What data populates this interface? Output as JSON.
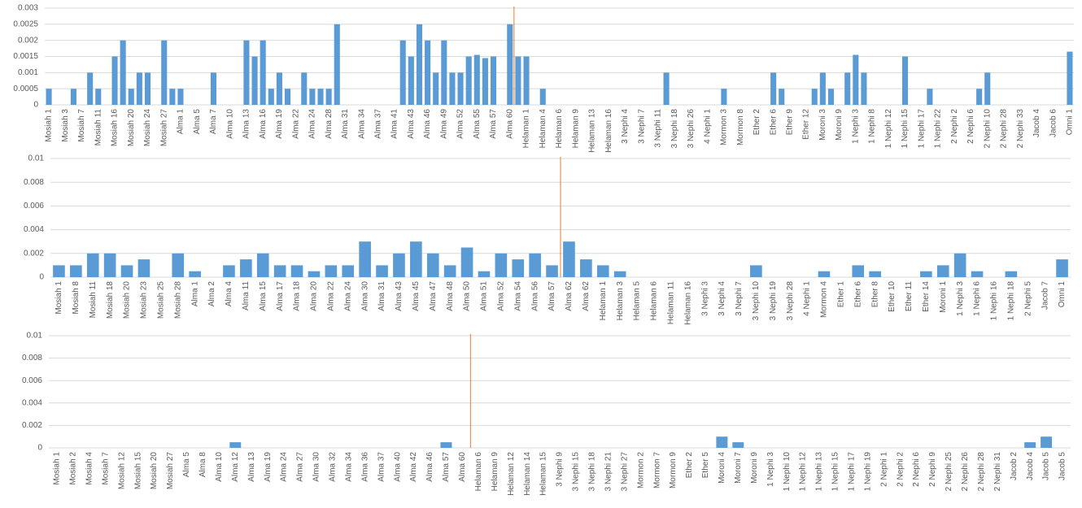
{
  "chart_data": [
    {
      "type": "bar",
      "color": "#5b9bd5",
      "grid": true,
      "ylim": [
        0,
        0.003
      ],
      "yticks": [
        0,
        0.0005,
        0.001,
        0.0015,
        0.002,
        0.0025,
        0.003
      ],
      "categories": [
        "Mosiah 1",
        null,
        "Mosiah 3",
        null,
        "Mosiah 7",
        null,
        "Mosiah 11",
        null,
        "Mosiah 16",
        null,
        "Mosiah 20",
        null,
        "Mosiah 24",
        null,
        "Mosiah 27",
        null,
        "Alma 1",
        null,
        "Alma 5",
        null,
        "Alma 7",
        null,
        "Alma 10",
        null,
        "Alma 13",
        null,
        "Alma 16",
        null,
        "Alma 19",
        null,
        "Alma 22",
        null,
        "Alma 24",
        null,
        "Alma 28",
        null,
        "Alma 31",
        null,
        "Alma 34",
        null,
        "Alma 37",
        null,
        "Alma 41",
        null,
        "Alma 43",
        null,
        "Alma 46",
        null,
        "Alma 49",
        null,
        "Alma 52",
        null,
        "Alma 55",
        null,
        "Alma 57",
        null,
        "Alma 60",
        null,
        "Helaman 1",
        null,
        "Helaman 4",
        null,
        "Helaman 6",
        null,
        "Helaman 9",
        null,
        "Helaman 13",
        null,
        "Helaman 16",
        null,
        "3 Nephi 4",
        null,
        "3 Nephi 7",
        null,
        "3 Nephi 11",
        null,
        "3 Nephi 18",
        null,
        "3 Nephi 26",
        null,
        "4 Nephi 1",
        null,
        "Mormon 3",
        null,
        "Mormon 8",
        null,
        "Ether 2",
        null,
        "Ether 6",
        null,
        "Ether 9",
        null,
        "Ether 12",
        null,
        "Moroni 3",
        null,
        "Moroni 9",
        null,
        "1 Nephi 3",
        null,
        "1 Nephi 8",
        null,
        "1 Nephi 12",
        null,
        "1 Nephi 15",
        null,
        "1 Nephi 17",
        null,
        "1 Nephi 22",
        null,
        "2 Nephi 2",
        null,
        "2 Nephi 6",
        null,
        "2 Nephi 10",
        null,
        "2 Nephi 28",
        null,
        "2 Nephi 33",
        null,
        "Jacob 4",
        null,
        "Jacob 6",
        null,
        "Omni 1"
      ],
      "values": [
        0.0005,
        0,
        0,
        0.0005,
        0,
        0.001,
        0.0005,
        0,
        0.0015,
        0.002,
        0.0005,
        0.001,
        0.001,
        0,
        0.002,
        0.0005,
        0.0005,
        0,
        0,
        0,
        0.001,
        0,
        0,
        0,
        0.002,
        0.0015,
        0.002,
        0.0005,
        0.001,
        0.0005,
        0,
        0.001,
        0.0005,
        0.0005,
        0.0005,
        0.0025,
        0,
        0,
        0,
        0,
        0,
        0,
        0,
        0.002,
        0.0015,
        0.0025,
        0.002,
        0.001,
        0.002,
        0.001,
        0.001,
        0.0015,
        0.00155,
        0.00145,
        0.0015,
        0,
        0.0025,
        0.0015,
        0.0015,
        0,
        0.0005,
        0,
        0,
        0,
        0,
        0,
        0,
        0,
        0,
        0,
        0,
        0,
        0,
        0,
        0,
        0.001,
        0,
        0,
        0,
        0,
        0,
        0,
        0.0005,
        0,
        0,
        0,
        0,
        0,
        0.001,
        0.0005,
        0,
        0,
        0,
        0.0005,
        0.001,
        0.0005,
        0,
        0.001,
        0.00155,
        0.001,
        0,
        0,
        0,
        0,
        0.0015,
        0,
        0,
        0.0005,
        0,
        0,
        0,
        0,
        0,
        0.0005,
        0.001,
        0,
        0,
        0,
        0,
        0,
        0,
        0,
        0,
        0,
        0.00165
      ]
    },
    {
      "type": "bar",
      "color": "#5b9bd5",
      "grid": true,
      "ylim": [
        0,
        0.01
      ],
      "yticks": [
        0,
        0.002,
        0.004,
        0.006,
        0.008,
        0.01
      ],
      "categories": [
        "Mosiah 1",
        "Mosiah 8",
        "Mosiah 11",
        "Mosiah 18",
        "Mosiah 20",
        "Mosiah 23",
        "Mosiah 25",
        "Mosiah 28",
        "Alma 1",
        "Alma 2",
        "Alma 4",
        "Alma 11",
        "Alma 15",
        "Alma 17",
        "Alma 18",
        "Alma 20",
        "Alma 22",
        "Alma 24",
        "Alma 30",
        "Alma 31",
        "Alma 43",
        "Alma 45",
        "Alma 47",
        "Alma 48",
        "Alma 50",
        "Alma 51",
        "Alma 52",
        "Alma 54",
        "Alma 56",
        "Alma 57",
        "Alma 62",
        "Alma 62",
        "Helaman 1",
        "Helaman 3",
        "Helaman 5",
        "Helaman 6",
        "Helaman 11",
        "Helaman 16",
        "3 Nephi 3",
        "3 Nephi 4",
        "3 Nephi 7",
        "3 Nephi 10",
        "3 Nephi 19",
        "3 Nephi 28",
        "4 Nephi 1",
        "Mormon 4",
        "Ether 1",
        "Ether 6",
        "Ether 8",
        "Ether 10",
        "Ether 11",
        "Ether 14",
        "Moroni 1",
        "1 Nephi 3",
        "1 Nephi 6",
        "1 Nephi 16",
        "1 Nephi 18",
        "2 Nephi 5",
        "Jacob 7",
        "Omni 1"
      ],
      "values": [
        0.001,
        0.001,
        0.002,
        0.002,
        0.001,
        0.0015,
        0,
        0.002,
        0.0005,
        0,
        0.001,
        0.0015,
        0.002,
        0.001,
        0.001,
        0.0005,
        0.001,
        0.001,
        0.003,
        0.001,
        0.002,
        0.003,
        0.002,
        0.001,
        0.0025,
        0.0005,
        0.002,
        0.0015,
        0.002,
        0.001,
        0.003,
        0.0015,
        0.001,
        0.0005,
        0,
        0,
        0,
        0,
        0,
        0,
        0,
        0.001,
        0,
        0,
        0,
        0.0005,
        0,
        0.001,
        0.0005,
        0,
        0,
        0.0005,
        0.001,
        0.002,
        0.0005,
        0,
        0.0005,
        0,
        0,
        0.0015
      ]
    },
    {
      "type": "bar",
      "color": "#5b9bd5",
      "grid": true,
      "ylim": [
        0,
        0.01
      ],
      "yticks": [
        0,
        0.002,
        0.004,
        0.006,
        0.008,
        0.01
      ],
      "categories": [
        "Mosiah 1",
        "Mosiah 2",
        "Mosiah 4",
        "Mosiah 7",
        "Mosiah 12",
        "Mosiah 15",
        "Mosiah 20",
        "Mosiah 27",
        "Alma 5",
        "Alma 8",
        "Alma 10",
        "Alma 12",
        "Alma 13",
        "Alma 19",
        "Alma 24",
        "Alma 27",
        "Alma 30",
        "Alma 32",
        "Alma 34",
        "Alma 36",
        "Alma 37",
        "Alma 40",
        "Alma 42",
        "Alma 46",
        "Alma 57",
        "Alma 60",
        "Helaman 6",
        "Helaman 9",
        "Helaman 12",
        "Helaman 14",
        "Helaman 15",
        "3 Nephi 9",
        "3 Nephi 15",
        "3 Nephi 18",
        "3 Nephi 21",
        "3 Nephi 27",
        "Mormon 2",
        "Mormon 7",
        "Mormon 9",
        "Ether 2",
        "Ether 5",
        "Moroni 4",
        "Moroni 7",
        "Moroni 9",
        "1 Nephi 3",
        "1 Nephi 10",
        "1 Nephi 12",
        "1 Nephi 13",
        "1 Nephi 15",
        "1 Nephi 17",
        "1 Nephi 19",
        "2 Nephi 1",
        "2 Nephi 2",
        "2 Nephi 6",
        "2 Nephi 9",
        "2 Nephi 25",
        "2 Nephi 26",
        "2 Nephi 28",
        "2 Nephi 31",
        "Jacob 2",
        "Jacob 4",
        "Jacob 5",
        "Jacob 5"
      ],
      "values": [
        0,
        0,
        0,
        0,
        0,
        0,
        0,
        0,
        0,
        0,
        0,
        0.0005,
        0,
        0,
        0,
        0,
        0,
        0,
        0,
        0,
        0,
        0,
        0,
        0,
        0.0005,
        0,
        0,
        0,
        0,
        0,
        0,
        0,
        0,
        0,
        0,
        0,
        0,
        0,
        0,
        0,
        0,
        0.001,
        0.0005,
        0,
        0,
        0,
        0,
        0,
        0,
        0,
        0,
        0,
        0,
        0,
        0,
        0,
        0,
        0,
        0,
        0,
        0.0005,
        0.001,
        0
      ]
    }
  ]
}
